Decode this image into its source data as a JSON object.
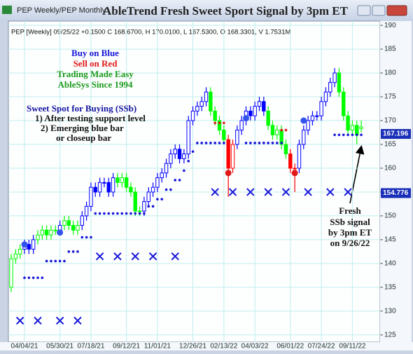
{
  "chart_data": {
    "type": "candlestick",
    "window_title": "PEP Weekly/PEP Monthly",
    "title": "AbleTrend Fresh Sweet Sport Signal by 3pm ET",
    "header": "PEP [Weekly] 09/25/22 +0.1500 C 168.6700, H 170.0100, L 167.5300, O 168.3301, V 1.7531M",
    "categories": [
      null,
      null,
      null,
      "04/04/21",
      null,
      null,
      null,
      null,
      null,
      null,
      null,
      "05/30/21",
      null,
      null,
      null,
      null,
      null,
      null,
      "07/18/21",
      null,
      null,
      null,
      null,
      null,
      null,
      null,
      "09/12/21",
      null,
      null,
      null,
      null,
      null,
      null,
      "11/01/21",
      null,
      null,
      null,
      null,
      null,
      null,
      null,
      "12/26/21",
      null,
      null,
      null,
      null,
      null,
      null,
      "02/13/22",
      null,
      null,
      null,
      null,
      null,
      null,
      "04/03/22",
      null,
      null,
      null,
      null,
      null,
      null,
      null,
      "06/01/22",
      null,
      null,
      null,
      null,
      null,
      null,
      "07/24/22",
      null,
      null,
      null,
      null,
      null,
      null,
      "09/11/22",
      null,
      null
    ],
    "open": [
      135,
      141,
      142,
      143,
      144,
      143,
      145,
      146,
      147,
      146,
      147,
      147,
      148,
      149,
      148,
      147,
      148,
      150,
      152,
      156,
      155,
      157,
      157,
      155,
      158,
      157,
      158,
      156,
      155,
      151,
      151,
      153,
      155,
      156,
      158,
      159,
      161,
      163,
      164,
      162,
      163,
      170,
      172,
      173,
      174,
      176,
      172,
      170,
      168,
      166,
      160,
      165,
      168,
      170,
      172,
      171,
      173,
      174,
      172,
      169,
      167,
      168,
      165,
      163,
      160,
      160,
      165,
      168,
      170,
      171,
      171,
      174,
      176,
      178,
      180,
      176,
      171,
      168,
      169,
      168.33
    ],
    "high": [
      142,
      143,
      144,
      145,
      145,
      146,
      147,
      148,
      148,
      148,
      148,
      149,
      150,
      150,
      149,
      149,
      151,
      153,
      157,
      157,
      158,
      158,
      158,
      159,
      159,
      159,
      159,
      157,
      156,
      152,
      154,
      156,
      157,
      159,
      160,
      162,
      164,
      165,
      165,
      164,
      171,
      173,
      174,
      175,
      177,
      177,
      173,
      171,
      169,
      167,
      166,
      169,
      171,
      173,
      173,
      174,
      175,
      175,
      173,
      170,
      169,
      169,
      166,
      164,
      161,
      166,
      169,
      171,
      172,
      172,
      175,
      177,
      179,
      181,
      181,
      177,
      172,
      170,
      170,
      170.01
    ],
    "low": [
      134,
      140,
      141,
      142,
      142,
      142,
      144,
      145,
      145,
      145,
      146,
      146,
      147,
      147,
      146,
      146,
      147,
      149,
      151,
      154,
      154,
      156,
      154,
      154,
      156,
      156,
      155,
      154,
      150,
      150,
      150,
      152,
      154,
      155,
      157,
      158,
      160,
      162,
      161,
      161,
      162,
      169,
      171,
      172,
      173,
      171,
      169,
      167,
      165,
      154,
      159,
      164,
      167,
      169,
      170,
      170,
      172,
      171,
      168,
      166,
      166,
      164,
      162,
      159,
      155,
      159,
      164,
      167,
      169,
      170,
      170,
      173,
      175,
      177,
      175,
      170,
      167,
      167,
      165,
      167.53
    ],
    "close": [
      141,
      142,
      143,
      144,
      143,
      145,
      146,
      147,
      146,
      147,
      147,
      148,
      149,
      148,
      147,
      148,
      150,
      152,
      156,
      155,
      157,
      157,
      155,
      158,
      157,
      158,
      156,
      155,
      151,
      151,
      153,
      155,
      156,
      158,
      159,
      161,
      163,
      164,
      162,
      163,
      170,
      172,
      173,
      174,
      176,
      172,
      170,
      168,
      166,
      160,
      165,
      168,
      170,
      172,
      171,
      173,
      174,
      172,
      169,
      167,
      168,
      165,
      163,
      160,
      160,
      165,
      168,
      170,
      171,
      171,
      174,
      176,
      178,
      180,
      176,
      171,
      168,
      169,
      167,
      168.67
    ],
    "bar_colors": [
      "lime",
      "lime",
      "lime",
      "blue",
      "blue",
      "blue",
      "lime",
      "lime",
      "lime",
      "lime",
      "lime",
      "blue",
      "lime",
      "lime",
      "lime",
      "lime",
      "blue",
      "blue",
      "blue",
      "blue",
      "blue",
      "blue",
      "blue",
      "blue",
      "lime",
      "lime",
      "lime",
      "lime",
      "lime",
      "lime",
      "blue",
      "blue",
      "blue",
      "blue",
      "blue",
      "blue",
      "blue",
      "blue",
      "blue",
      "blue",
      "blue",
      "blue",
      "blue",
      "blue",
      "blue",
      "lime",
      "lime",
      "lime",
      "lime",
      "red",
      "red",
      "blue",
      "blue",
      "blue",
      "blue",
      "blue",
      "blue",
      "blue",
      "lime",
      "lime",
      "lime",
      "lime",
      "lime",
      "red",
      "red",
      "blue",
      "blue",
      "blue",
      "blue",
      "blue",
      "blue",
      "blue",
      "blue",
      "blue",
      "lime",
      "lime",
      "lime",
      "lime",
      "lime",
      "lime"
    ],
    "support": {
      "color": "#1515d8",
      "values": [
        null,
        null,
        null,
        137,
        137,
        137,
        137,
        137,
        140.5,
        140.5,
        140.5,
        140.5,
        140.5,
        142.5,
        142.5,
        142.5,
        145.5,
        145.5,
        145.5,
        150.5,
        150.5,
        150.5,
        150.5,
        150.5,
        150.5,
        150.5,
        150.5,
        150.5,
        150.5,
        150.5,
        150.5,
        152,
        152,
        153.5,
        153.5,
        155.5,
        155.5,
        157.5,
        157.5,
        159.5,
        161.5,
        163.5,
        165.3,
        165.3,
        165.3,
        165.3,
        165.3,
        165.3,
        165.3,
        null,
        null,
        null,
        null,
        165.3,
        165.3,
        165.3,
        165.3,
        165.3,
        165.3,
        165.3,
        165.3,
        165.3,
        null,
        null,
        null,
        null,
        null,
        null,
        null,
        null,
        null,
        null,
        null,
        167,
        167,
        167,
        167,
        167,
        167,
        167
      ]
    },
    "resistance": {
      "color": "#e01818",
      "values": [
        null,
        null,
        null,
        null,
        null,
        null,
        null,
        null,
        null,
        null,
        null,
        null,
        null,
        null,
        null,
        null,
        null,
        null,
        null,
        null,
        null,
        null,
        null,
        null,
        null,
        null,
        null,
        null,
        null,
        null,
        null,
        null,
        null,
        null,
        null,
        null,
        null,
        null,
        null,
        null,
        null,
        null,
        null,
        null,
        null,
        null,
        169.5,
        169.5,
        169.5,
        null,
        null,
        null,
        null,
        null,
        null,
        null,
        null,
        null,
        null,
        null,
        null,
        168,
        168,
        null,
        null,
        null,
        null,
        null,
        null,
        null,
        null,
        null,
        null,
        null,
        null,
        null,
        null,
        null,
        null,
        null
      ]
    },
    "x_marks": {
      "color": "#1515d8",
      "values": [
        null,
        null,
        128,
        null,
        null,
        null,
        128,
        null,
        null,
        null,
        null,
        128,
        null,
        null,
        null,
        128,
        null,
        null,
        null,
        null,
        141.5,
        null,
        null,
        null,
        141.5,
        null,
        null,
        null,
        141.5,
        null,
        null,
        null,
        141.5,
        null,
        null,
        null,
        null,
        141.5,
        null,
        null,
        null,
        null,
        null,
        null,
        null,
        null,
        155,
        null,
        null,
        null,
        155,
        null,
        null,
        null,
        155,
        null,
        null,
        null,
        155,
        null,
        null,
        null,
        155,
        null,
        null,
        null,
        null,
        155,
        null,
        null,
        null,
        null,
        155,
        null,
        null,
        null,
        155,
        null,
        null,
        null
      ]
    },
    "buy_signals": {
      "color": "#3355ee",
      "values": [
        null,
        null,
        null,
        144,
        null,
        null,
        null,
        null,
        null,
        null,
        null,
        146.5,
        null,
        null,
        null,
        null,
        null,
        null,
        null,
        null,
        null,
        null,
        null,
        null,
        null,
        null,
        null,
        null,
        null,
        null,
        null,
        null,
        null,
        null,
        null,
        null,
        null,
        null,
        null,
        null,
        null,
        null,
        null,
        null,
        null,
        null,
        null,
        null,
        null,
        null,
        null,
        null,
        null,
        170.5,
        null,
        null,
        null,
        null,
        null,
        null,
        null,
        null,
        null,
        null,
        null,
        null,
        170,
        null,
        null,
        null,
        null,
        null,
        null,
        null,
        null,
        null,
        null,
        null,
        null,
        null
      ]
    },
    "sell_signals": {
      "color": "#e01818",
      "values": [
        null,
        null,
        null,
        null,
        null,
        null,
        null,
        null,
        null,
        null,
        null,
        null,
        null,
        null,
        null,
        null,
        null,
        null,
        null,
        null,
        null,
        null,
        null,
        null,
        null,
        null,
        null,
        null,
        null,
        null,
        null,
        null,
        null,
        null,
        null,
        null,
        null,
        null,
        null,
        null,
        null,
        null,
        null,
        null,
        null,
        null,
        null,
        null,
        null,
        159,
        null,
        null,
        null,
        null,
        null,
        null,
        null,
        null,
        null,
        null,
        null,
        null,
        null,
        null,
        159,
        null,
        null,
        null,
        null,
        null,
        null,
        null,
        null,
        null,
        null,
        null,
        null,
        null,
        null,
        null
      ]
    },
    "price_labels": [
      167.196,
      154.776
    ],
    "ylim": [
      123.5,
      190.9
    ],
    "yticks": [
      125,
      130,
      135,
      140,
      145,
      150,
      155,
      160,
      165,
      170,
      175,
      180,
      185,
      190
    ],
    "grid": true,
    "annotations": [
      {
        "text": "Buy on Blue",
        "color": "#1515d8"
      },
      {
        "text": "Sell on Red",
        "color": "#e01818"
      },
      {
        "text": "Trading Made Easy",
        "color": "#1a9a1a"
      },
      {
        "text": "AbleSys Since 1994",
        "color": "#1a9a1a"
      },
      {
        "text": "Sweet Spot for Buying (SSb)",
        "color": "#1515a0"
      },
      {
        "text": "1) After testing support level",
        "color": "#111"
      },
      {
        "text": "2) Emerging blue bar",
        "color": "#111"
      },
      {
        "text": "or closeup bar",
        "color": "#111"
      },
      {
        "text": "Fresh",
        "color": "#111"
      },
      {
        "text": "SSb signal",
        "color": "#111"
      },
      {
        "text": "by 3pm ET",
        "color": "#111"
      },
      {
        "text": "on 9/26/22",
        "color": "#111"
      }
    ]
  }
}
